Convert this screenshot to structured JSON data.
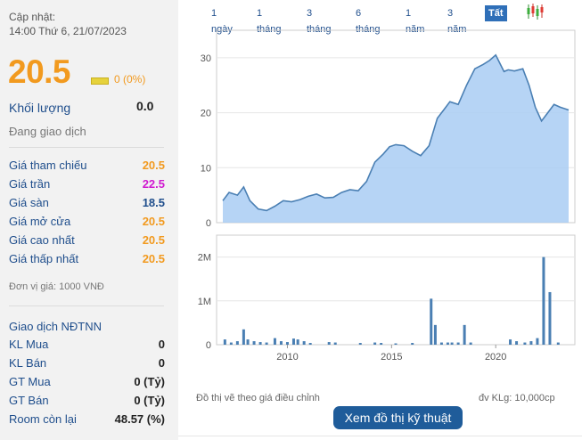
{
  "stock": {
    "updated_label": "Cập nhật:",
    "updated_time": "14:00 Thứ 6, 21/07/2023",
    "price": "20.5",
    "change": "0 (0%)",
    "volume_label": "Khối lượng",
    "volume_value": "0.0",
    "status": "Đang giao dịch",
    "unit_note": "Đơn vị giá: 1000 VNĐ"
  },
  "price_rows": [
    {
      "label": "Giá tham chiếu",
      "value": "20.5",
      "color": "#f29a1f"
    },
    {
      "label": "Giá trần",
      "value": "22.5",
      "color": "#d01ad0"
    },
    {
      "label": "Giá sàn",
      "value": "18.5",
      "color": "#1f4e8c"
    },
    {
      "label": "Giá mở cửa",
      "value": "20.5",
      "color": "#f29a1f"
    },
    {
      "label": "Giá cao nhất",
      "value": "20.5",
      "color": "#f29a1f"
    },
    {
      "label": "Giá thấp nhất",
      "value": "20.5",
      "color": "#f29a1f"
    }
  ],
  "foreign": {
    "title": "Giao dịch NĐTNN",
    "rows": [
      {
        "label": "KL Mua",
        "value": "0"
      },
      {
        "label": "KL Bán",
        "value": "0"
      },
      {
        "label": "GT Mua",
        "value": "0 (Tỷ)"
      },
      {
        "label": "GT Bán",
        "value": "0 (Tỷ)"
      },
      {
        "label": "Room còn lại",
        "value": "48.57 (%)"
      }
    ]
  },
  "ranges": {
    "items": [
      "1 ngày",
      "1 tháng",
      "3 tháng",
      "6 tháng",
      "1 năm",
      "3 năm",
      "Tất cả"
    ],
    "active": "Tất cả"
  },
  "footer": {
    "note_left": "Đồ thị vẽ theo giá điều chỉnh",
    "note_right": "đv KLg: 10,000cp",
    "tech_button": "Xem đồ thị kỹ thuật"
  },
  "chart_data": {
    "type": "area",
    "price": {
      "y_ticks": [
        "0",
        "10",
        "20",
        "30"
      ],
      "ylim": [
        0,
        35
      ],
      "x": [
        2006.9,
        2007.2,
        2007.6,
        2007.9,
        2008.2,
        2008.6,
        2009.0,
        2009.4,
        2009.8,
        2010.2,
        2010.6,
        2011.0,
        2011.4,
        2011.8,
        2012.2,
        2012.6,
        2013.0,
        2013.4,
        2013.8,
        2014.2,
        2014.6,
        2014.9,
        2015.2,
        2015.6,
        2016.0,
        2016.4,
        2016.8,
        2017.2,
        2017.5,
        2017.8,
        2018.2,
        2018.6,
        2019.0,
        2019.4,
        2019.7,
        2020.0,
        2020.4,
        2020.6,
        2020.9,
        2021.3,
        2021.6,
        2021.9,
        2022.2,
        2022.5,
        2022.8,
        2023.1,
        2023.5
      ],
      "values": [
        4.0,
        5.5,
        5.0,
        6.5,
        4.0,
        2.5,
        2.2,
        3.0,
        4.0,
        3.8,
        4.2,
        4.8,
        5.2,
        4.5,
        4.6,
        5.5,
        6.0,
        5.8,
        7.5,
        11.0,
        12.5,
        13.8,
        14.2,
        14.0,
        13.0,
        12.2,
        14.0,
        19.0,
        20.5,
        22.0,
        21.5,
        25.0,
        28.0,
        28.8,
        29.5,
        30.5,
        27.5,
        27.8,
        27.6,
        28.0,
        25.0,
        21.0,
        18.5,
        20.0,
        21.5,
        21.0,
        20.5
      ]
    },
    "volume": {
      "y_ticks": [
        "0",
        "1M",
        "2M"
      ],
      "ylim": [
        0,
        2.5
      ],
      "x": [
        2007.0,
        2007.3,
        2007.6,
        2007.9,
        2008.1,
        2008.4,
        2008.7,
        2009.0,
        2009.4,
        2009.7,
        2010.0,
        2010.3,
        2010.5,
        2010.8,
        2011.1,
        2012.0,
        2012.3,
        2013.5,
        2014.2,
        2014.5,
        2015.2,
        2016.0,
        2016.9,
        2017.1,
        2017.4,
        2017.7,
        2017.9,
        2018.2,
        2018.5,
        2018.8,
        2020.7,
        2021.0,
        2021.4,
        2021.7,
        2022.0,
        2022.3,
        2022.6,
        2023.0
      ],
      "values": [
        0.12,
        0.05,
        0.08,
        0.35,
        0.12,
        0.08,
        0.06,
        0.05,
        0.15,
        0.08,
        0.06,
        0.14,
        0.12,
        0.08,
        0.04,
        0.06,
        0.05,
        0.04,
        0.05,
        0.04,
        0.03,
        0.04,
        1.05,
        0.45,
        0.05,
        0.05,
        0.05,
        0.05,
        0.45,
        0.05,
        0.12,
        0.08,
        0.05,
        0.08,
        0.15,
        2.0,
        1.2,
        0.05
      ]
    },
    "x_ticks": [
      2010,
      2015,
      2020
    ],
    "xlim": [
      2006.6,
      2023.8
    ],
    "fill_color": "#a9cdf3",
    "line_color": "#4a7fb3",
    "bar_color": "#4a7fb3"
  }
}
